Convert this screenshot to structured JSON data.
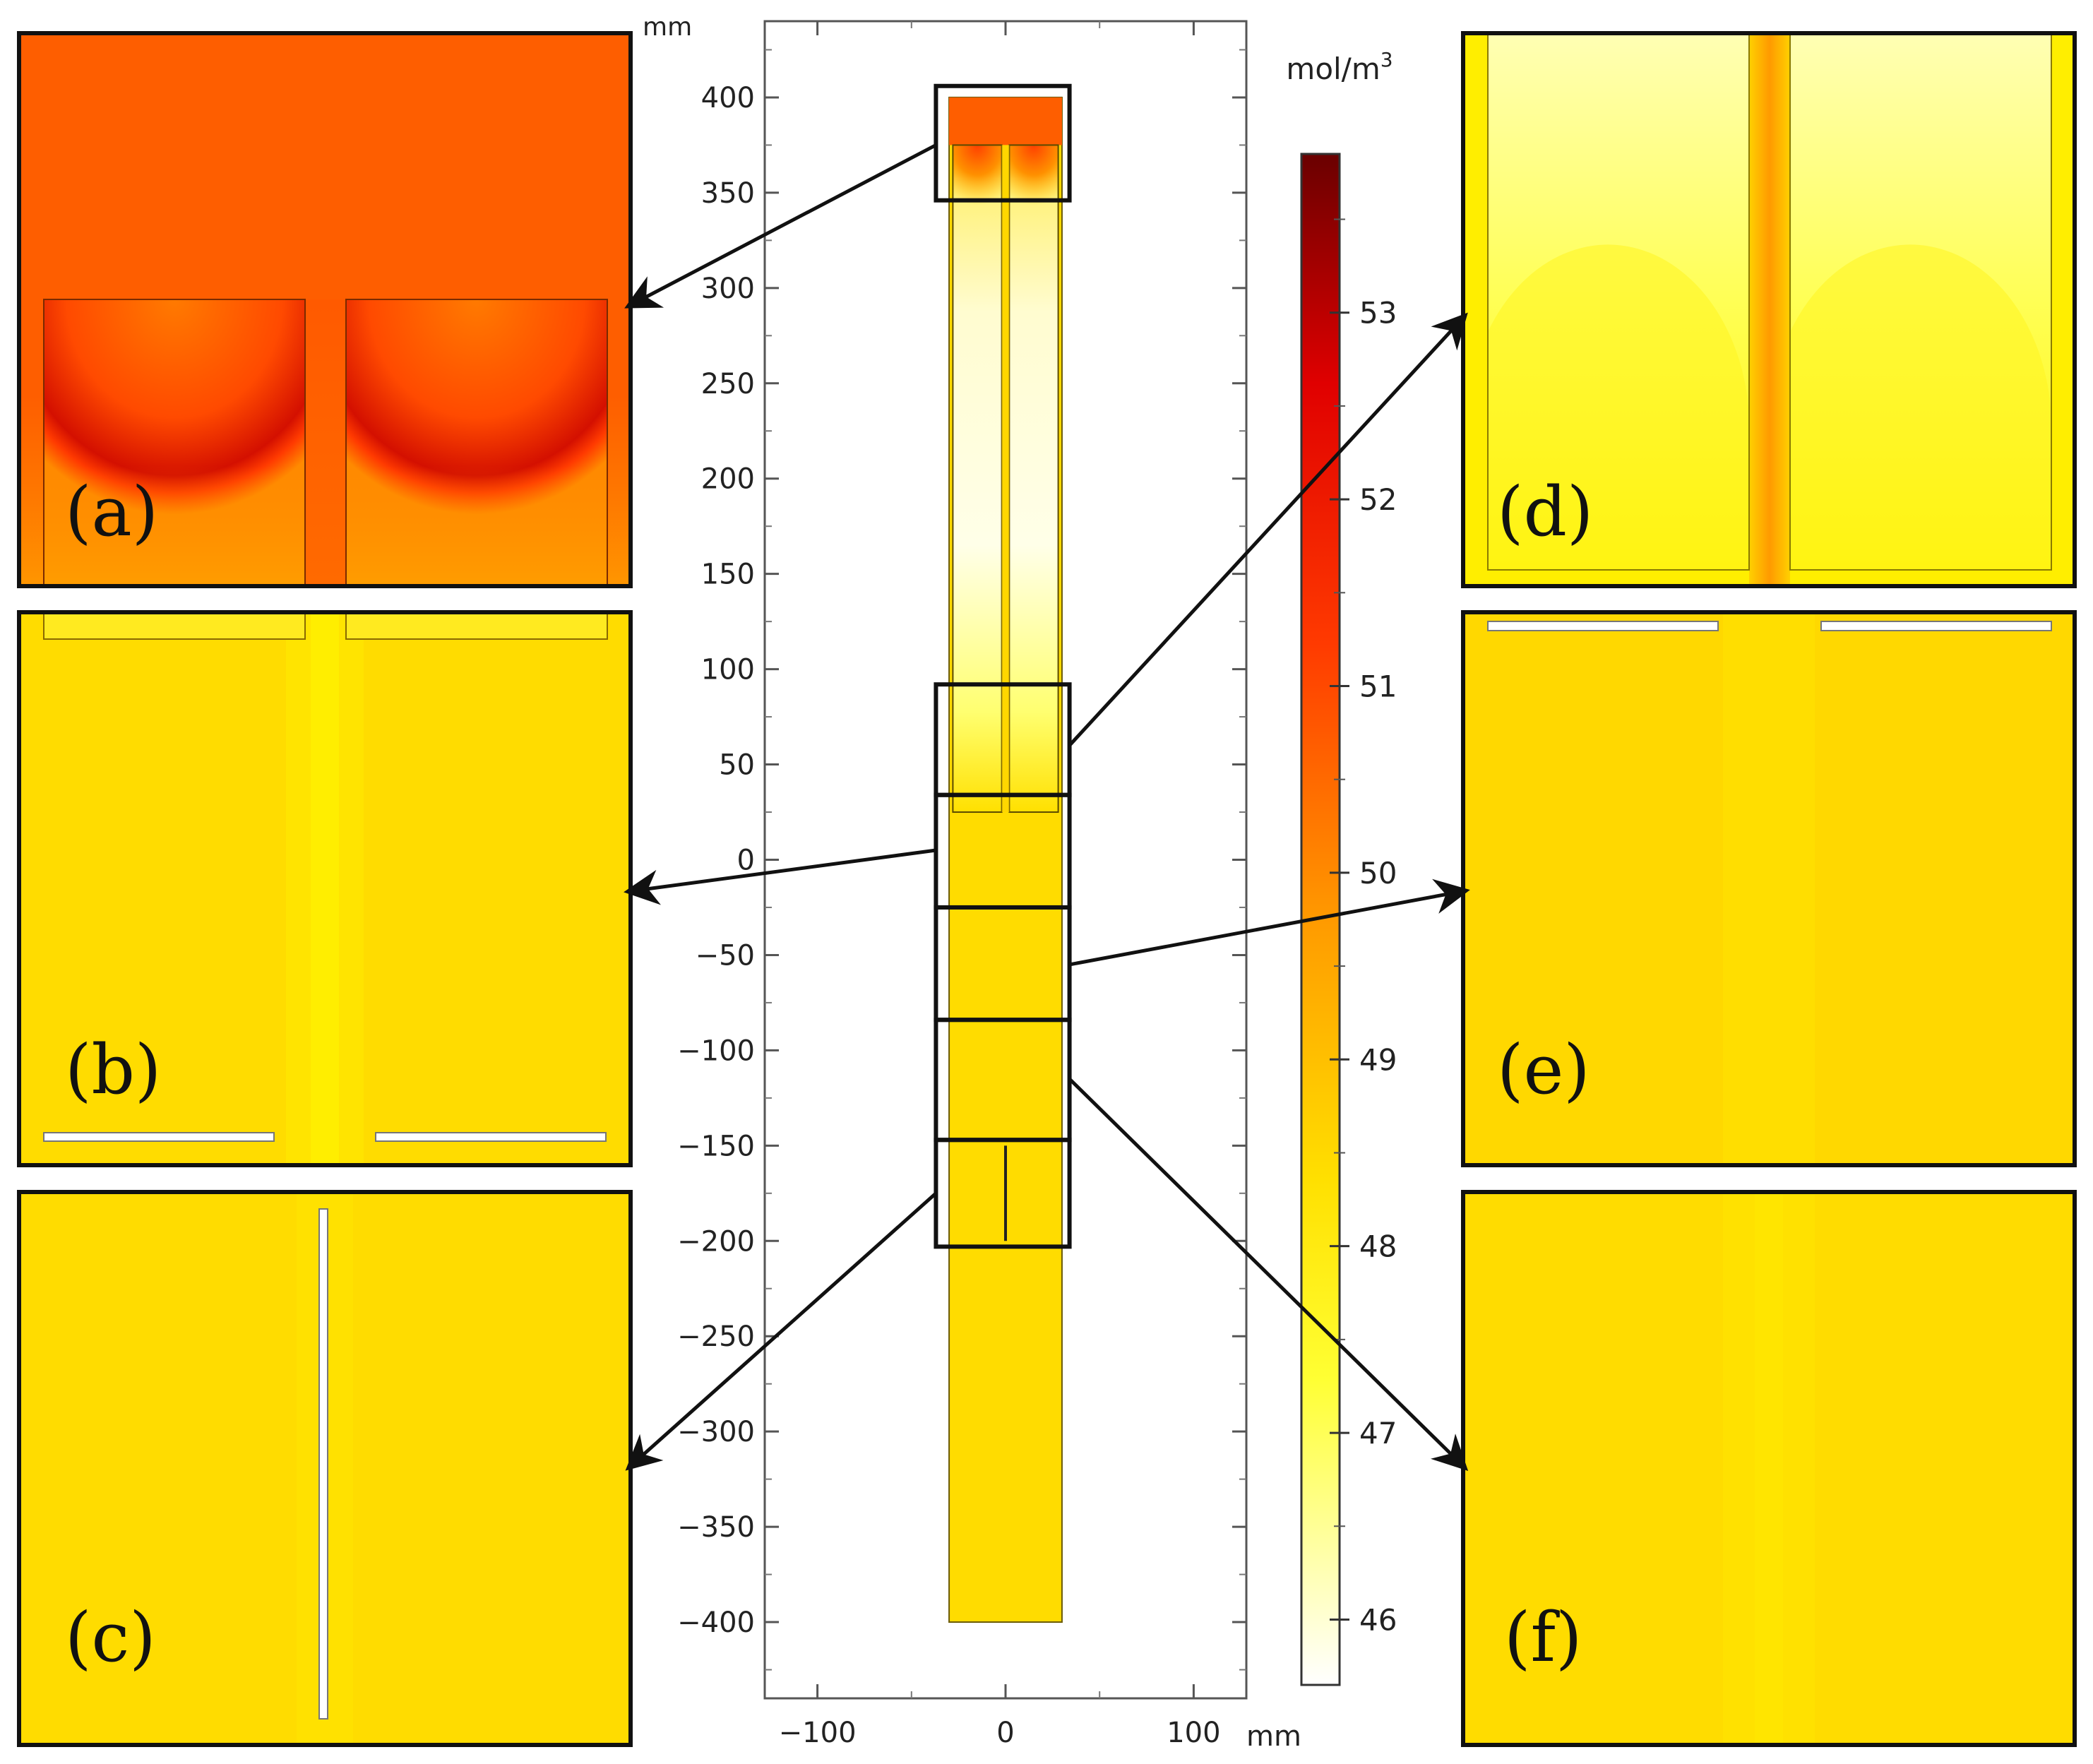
{
  "chart_data": {
    "type": "heatmap",
    "title": "",
    "main_plot": {
      "x_unit": "mm",
      "y_unit": "mm",
      "xlim": [
        -128,
        128
      ],
      "ylim": [
        -440,
        440
      ],
      "x_ticks": [
        -100,
        0,
        100
      ],
      "x_tick_labels": [
        "−100",
        "0",
        "100"
      ],
      "y_ticks": [
        400,
        350,
        300,
        250,
        200,
        150,
        100,
        50,
        0,
        -50,
        -100,
        -150,
        -200,
        -250,
        -300,
        -350,
        -400
      ],
      "y_tick_labels": [
        "400",
        "350",
        "300",
        "250",
        "200",
        "150",
        "100",
        "50",
        "0",
        "−50",
        "−100",
        "−150",
        "−200",
        "−250",
        "−300",
        "−350",
        "−400"
      ],
      "column": {
        "x_range": [
          -30,
          30
        ],
        "y_range": [
          -400,
          400
        ]
      },
      "head": {
        "x_range": [
          -30,
          30
        ],
        "y_range": [
          375,
          400
        ],
        "color": "#FE5E00"
      },
      "internal_channels": [
        {
          "x_range": [
            -28,
            -2
          ],
          "y_range": [
            25,
            375
          ]
        },
        {
          "x_range": [
            2,
            28
          ],
          "y_range": [
            25,
            375
          ]
        }
      ],
      "center_rod": {
        "x": 0,
        "y_range": [
          -200,
          -150
        ]
      },
      "zoom_boxes": [
        {
          "panel": "(a)",
          "x_range": [
            -37,
            34
          ],
          "y_range": [
            346,
            406
          ]
        },
        {
          "panel": "(d)",
          "x_range": [
            -37,
            34
          ],
          "y_range": [
            34,
            92
          ]
        },
        {
          "panel": "(b)",
          "x_range": [
            -37,
            34
          ],
          "y_range": [
            -25,
            34
          ]
        },
        {
          "panel": "(e)",
          "x_range": [
            -37,
            34
          ],
          "y_range": [
            -84,
            -25
          ]
        },
        {
          "panel": "(f)",
          "x_range": [
            -37,
            34
          ],
          "y_range": [
            -147,
            -84
          ]
        },
        {
          "panel": "(c)",
          "x_range": [
            -37,
            34
          ],
          "y_range": [
            -203,
            -147
          ]
        }
      ]
    },
    "colorbar": {
      "unit": "mol/m3",
      "ticks": [
        53,
        52,
        51,
        50,
        49,
        48,
        47,
        46
      ],
      "range": [
        45.65,
        53.85
      ],
      "stops": [
        "#FFFFFF",
        "#FFFF33",
        "#FFE000",
        "#FF9A00",
        "#FF3A00",
        "#E00000",
        "#6A0000"
      ]
    },
    "panels": [
      {
        "label": "(a)",
        "region_y_mm": [
          346,
          406
        ],
        "concentration_range": [
          50.8,
          53.3
        ]
      },
      {
        "label": "(b)",
        "region_y_mm": [
          -25,
          34
        ],
        "concentration_range": [
          48.9,
          49.3
        ]
      },
      {
        "label": "(c)",
        "region_y_mm": [
          -203,
          -147
        ],
        "concentration_range": [
          48.9,
          49.1
        ]
      },
      {
        "label": "(d)",
        "region_y_mm": [
          34,
          92
        ],
        "concentration_range": [
          47.0,
          50.3
        ]
      },
      {
        "label": "(e)",
        "region_y_mm": [
          -84,
          -25
        ],
        "concentration_range": [
          49.0,
          49.3
        ]
      },
      {
        "label": "(f)",
        "region_y_mm": [
          -147,
          -84
        ],
        "concentration_range": [
          48.9,
          49.1
        ]
      }
    ]
  }
}
